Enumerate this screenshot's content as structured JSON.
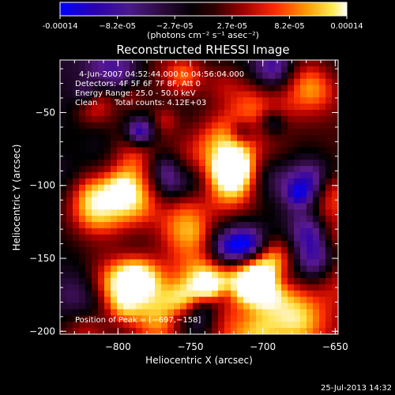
{
  "colorbar": {
    "tick_labels": [
      "-0.00014",
      "−8.2e-05",
      "−2.7e-05",
      "2.7e-05",
      "8.2e-05",
      "0.00014"
    ],
    "min": -0.00014,
    "max": 0.00014,
    "units_label": "(photons cm⁻² s⁻¹ asec⁻²)",
    "colormap": [
      "#0000ff",
      "#2a00aa",
      "#5a1a8c",
      "#2b0a3a",
      "#000000",
      "#5a0000",
      "#b00000",
      "#ff3000",
      "#ff9000",
      "#ffe040",
      "#ffffff"
    ]
  },
  "chart_data": {
    "type": "heatmap",
    "title": "Reconstructed RHESSI Image",
    "xlabel": "Heliocentric X (arcsec)",
    "ylabel": "Heliocentric Y (arcsec)",
    "xlim": [
      -840,
      -648
    ],
    "ylim": [
      -202,
      -14
    ],
    "xticks": [
      -800,
      -750,
      -700,
      -650
    ],
    "yticks": [
      -50,
      -100,
      -150,
      -200
    ],
    "annotations": {
      "time_range": "4-Jun-2007 04:52:44.000 to 04:56:04.000",
      "detectors": "Detectors: 4F 5F 6F 7F 8F, Att 0",
      "energy": "Energy Range: 25.0 - 50.0 keV",
      "clean_label": "Clean",
      "total_counts": "Total counts: 4.12E+03",
      "peak": "Position of Peak = [−697,−158]"
    },
    "peak_position": [
      -697,
      -158
    ]
  },
  "footer": {
    "timestamp": "25-Jul-2013 14:32"
  }
}
